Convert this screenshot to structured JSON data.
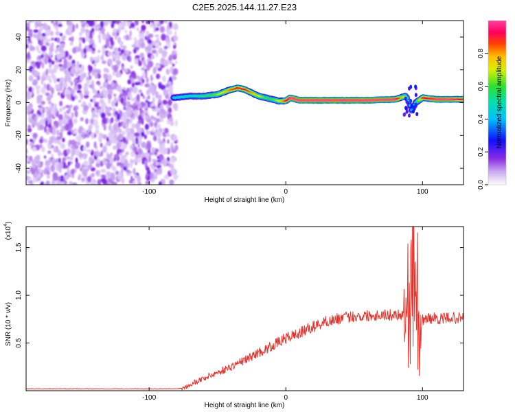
{
  "title": "C2E5.2025.144.11.27.E23",
  "colors": {
    "snr_line": "#e8322a",
    "background": "#ffffff",
    "axis": "#000000"
  },
  "chart_data": [
    {
      "type": "heatmap",
      "name": "spectrogram",
      "title": "C2E5.2025.144.11.27.E23",
      "xlabel": "Height of straight line (km)",
      "ylabel": "Frequency (Hz)",
      "xlim": [
        -190,
        130
      ],
      "ylim": [
        -50,
        50
      ],
      "x_ticks": [
        -100,
        0,
        100
      ],
      "x_tick_labels": [
        "-100",
        "0",
        "100"
      ],
      "y_ticks": [
        -40,
        -20,
        0,
        20,
        40
      ],
      "y_tick_labels": [
        "-40",
        "-20",
        "0",
        "20",
        "40"
      ],
      "colorbar": {
        "label": "Normalized spectral amplitude",
        "range": [
          0,
          1
        ],
        "ticks": [
          0,
          0.2,
          0.4,
          0.6,
          0.8
        ],
        "tick_labels": [
          "0.0",
          "0.2",
          "0.4",
          "0.6",
          "0.8"
        ],
        "colormap": "rainbow: white → violet → blue → cyan → green → yellow → red → magenta"
      },
      "noise_region": {
        "x_range": [
          -190,
          -80
        ],
        "freq_range": [
          -50,
          50
        ],
        "amplitude": "low (0.0–0.15)"
      },
      "signal_ridge": {
        "x": [
          -82,
          -70,
          -60,
          -50,
          -40,
          -35,
          -30,
          -25,
          -20,
          -15,
          -10,
          -5,
          0,
          3,
          10,
          20,
          40,
          60,
          80,
          88,
          90,
          92,
          95,
          100,
          110,
          120,
          130
        ],
        "frequency": [
          3,
          4,
          4,
          5,
          8,
          9,
          8,
          6,
          4,
          3,
          2,
          1,
          1,
          3,
          1.5,
          1.5,
          1.5,
          1.5,
          2,
          4,
          0,
          -5,
          0,
          3,
          2,
          2,
          2
        ],
        "peak_amplitude": [
          0.45,
          0.5,
          0.55,
          0.65,
          0.85,
          0.9,
          0.9,
          0.8,
          0.7,
          0.6,
          0.6,
          0.7,
          0.9,
          1.0,
          1.0,
          1.0,
          1.0,
          1.0,
          1.0,
          0.6,
          0.5,
          0.4,
          0.5,
          0.9,
          1.0,
          1.0,
          0.9
        ]
      }
    },
    {
      "type": "line",
      "name": "snr",
      "xlabel": "Height of straight line (km)",
      "ylabel": "SNR (10 * v/v)",
      "y_scale_label": "(x10",
      "y_scale_exponent": "4",
      "xlim": [
        -190,
        130
      ],
      "ylim": [
        0,
        1.72
      ],
      "x_ticks": [
        -100,
        0,
        100
      ],
      "x_tick_labels": [
        "-100",
        "0",
        "100"
      ],
      "y_ticks": [
        0.5,
        1.0,
        1.5
      ],
      "y_tick_labels": [
        "0.5",
        "1.0",
        "1.5"
      ],
      "series": [
        {
          "name": "SNR",
          "color": "#e8322a",
          "x": [
            -190,
            -160,
            -130,
            -100,
            -90,
            -85,
            -80,
            -75,
            -70,
            -65,
            -60,
            -55,
            -50,
            -45,
            -40,
            -35,
            -30,
            -25,
            -20,
            -15,
            -10,
            -5,
            0,
            5,
            10,
            15,
            20,
            25,
            30,
            35,
            40,
            45,
            50,
            55,
            60,
            65,
            70,
            75,
            80,
            85,
            88,
            90,
            92,
            94,
            95,
            96,
            97,
            98,
            100,
            105,
            110,
            115,
            120,
            125,
            130
          ],
          "y": [
            0.02,
            0.02,
            0.02,
            0.02,
            0.02,
            0.02,
            0.02,
            0.03,
            0.07,
            0.1,
            0.13,
            0.16,
            0.19,
            0.22,
            0.25,
            0.29,
            0.32,
            0.36,
            0.4,
            0.43,
            0.47,
            0.51,
            0.55,
            0.58,
            0.6,
            0.64,
            0.67,
            0.7,
            0.73,
            0.74,
            0.76,
            0.77,
            0.78,
            0.78,
            0.79,
            0.79,
            0.8,
            0.79,
            0.8,
            0.8,
            0.85,
            0.95,
            1.1,
            1.3,
            1.4,
            1.2,
            0.6,
            0.4,
            0.75,
            0.76,
            0.76,
            0.75,
            0.77,
            0.76,
            0.76
          ]
        }
      ]
    }
  ]
}
